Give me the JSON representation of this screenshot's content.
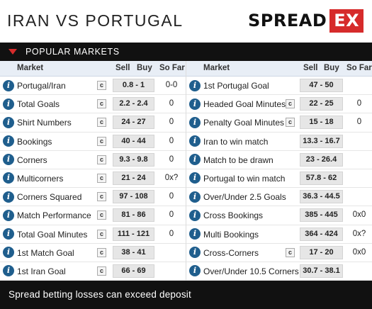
{
  "header": {
    "title": "IRAN VS PORTUGAL",
    "logo_part1": "SPREAD",
    "logo_part2": "EX"
  },
  "section_label": "POPULAR MARKETS",
  "columns": {
    "market": "Market",
    "sell": "Sell",
    "buy": "Buy",
    "so_far": "So Far"
  },
  "left_rows": [
    {
      "name": "Portugal/Iran",
      "c": "c",
      "price": "0.8 - 1",
      "so_far": "0-0"
    },
    {
      "name": "Total Goals",
      "c": "c",
      "price": "2.2 - 2.4",
      "so_far": "0"
    },
    {
      "name": "Shirt Numbers",
      "c": "c",
      "price": "24 - 27",
      "so_far": "0"
    },
    {
      "name": "Bookings",
      "c": "c",
      "price": "40 - 44",
      "so_far": "0"
    },
    {
      "name": "Corners",
      "c": "c",
      "price": "9.3 - 9.8",
      "so_far": "0"
    },
    {
      "name": "Multicorners",
      "c": "c",
      "price": "21 - 24",
      "so_far": "0x?"
    },
    {
      "name": "Corners Squared",
      "c": "c",
      "price": "97 - 108",
      "so_far": "0"
    },
    {
      "name": "Match Performance",
      "c": "c",
      "price": "81 - 86",
      "so_far": "0"
    },
    {
      "name": "Total Goal Minutes",
      "c": "c",
      "price": "111 - 121",
      "so_far": "0"
    },
    {
      "name": "1st Match Goal",
      "c": "c",
      "price": "38 - 41",
      "so_far": ""
    },
    {
      "name": "1st Iran Goal",
      "c": "c",
      "price": "66 - 69",
      "so_far": ""
    }
  ],
  "right_rows": [
    {
      "name": "1st Portugal Goal",
      "c": "",
      "price": "47 - 50",
      "so_far": ""
    },
    {
      "name": "Headed Goal Minutes",
      "c": "c",
      "price": "22 - 25",
      "so_far": "0"
    },
    {
      "name": "Penalty Goal Minutes",
      "c": "c",
      "price": "15 - 18",
      "so_far": "0"
    },
    {
      "name": "Iran to win match",
      "c": "",
      "price": "13.3 - 16.7",
      "so_far": ""
    },
    {
      "name": "Match to be drawn",
      "c": "",
      "price": "23 - 26.4",
      "so_far": ""
    },
    {
      "name": "Portugal to win match",
      "c": "",
      "price": "57.8 - 62",
      "so_far": ""
    },
    {
      "name": "Over/Under 2.5 Goals",
      "c": "",
      "price": "36.3 - 44.5",
      "so_far": ""
    },
    {
      "name": "Cross Bookings",
      "c": "",
      "price": "385 - 445",
      "so_far": "0x0"
    },
    {
      "name": "Multi Bookings",
      "c": "",
      "price": "364 - 424",
      "so_far": "0x?"
    },
    {
      "name": "Cross-Corners",
      "c": "c",
      "price": "17 - 20",
      "so_far": "0x0"
    },
    {
      "name": "Over/Under 10.5 Corners",
      "c": "",
      "price": "30.7 - 38.1",
      "so_far": ""
    }
  ],
  "footer": "Spread betting losses can exceed deposit"
}
